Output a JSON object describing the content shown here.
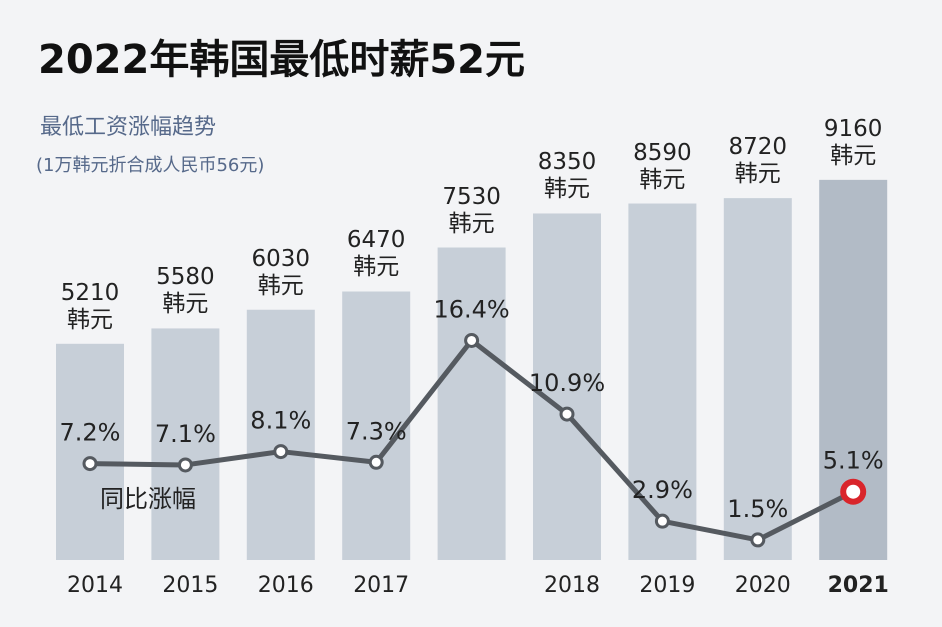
{
  "chart_data": {
    "type": "bar_line",
    "title": "2022年韩国最低时薪52元",
    "subtitle": "最低工资涨幅趋势",
    "note": "(1万韩元折合成人民币56元)",
    "categories": [
      "2014",
      "2015",
      "2016",
      "2017",
      null,
      "2018",
      "2019",
      "2020",
      "2021"
    ],
    "series": [
      {
        "color": "#c7cfd8",
        "highlight_color": "#b2bbc6",
        "values": [
          5210,
          5580,
          6030,
          6470,
          7530,
          8350,
          8590,
          8720,
          9160
        ],
        "value_labels": [
          "5210\n韩元",
          "5580\n韩元",
          "6030\n韩元",
          "6470\n韩元",
          "7530\n韩元",
          "8350\n韩元",
          "8590\n韩元",
          "8720\n韩元",
          "9160\n韩元"
        ]
      },
      {
        "name": "同比涨幅",
        "axis": "y2",
        "color": "#555a60",
        "highlight_color": "#d9252b",
        "values": [
          7.2,
          7.1,
          8.1,
          7.3,
          16.4,
          10.9,
          2.9,
          1.5,
          5.1
        ],
        "value_labels": [
          "7.2%",
          "7.1%",
          "8.1%",
          "7.3%",
          "16.4%",
          "10.9%",
          "2.9%",
          "1.5%",
          "5.1%"
        ]
      }
    ],
    "ylim": [
      0,
      10000
    ],
    "y2lim": [
      0,
      31
    ]
  }
}
